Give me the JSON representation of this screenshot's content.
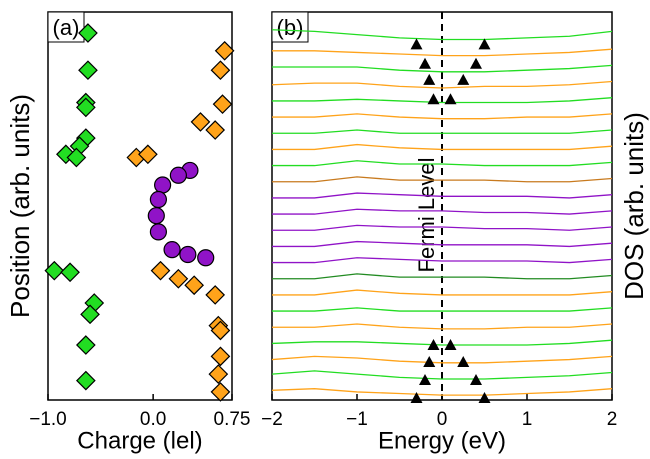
{
  "chart_data": [
    {
      "type": "scatter",
      "panel_label": "(a)",
      "x_label": "Charge (lel)",
      "y_label": "Position (arb. units)",
      "xlim": [
        -1,
        0.75
      ],
      "ylim": [
        0,
        24
      ],
      "xticks": [
        {
          "value": -1,
          "label": "−1.0"
        },
        {
          "value": 0,
          "label": "0.0"
        },
        0.75
      ],
      "series": [
        {
          "color": "#22dd22",
          "marker": "diamond",
          "x": [
            -0.62,
            -0.62,
            -0.64,
            -0.64,
            -0.64,
            -0.7,
            -0.83,
            -0.73,
            -0.94,
            -0.79,
            -0.56,
            -0.6,
            -0.64,
            -0.64
          ],
          "y": [
            22.7,
            20.4,
            18.4,
            18.1,
            16.2,
            15.7,
            15.2,
            15.0,
            8.0,
            7.9,
            6.0,
            5.3,
            3.4,
            1.2
          ]
        },
        {
          "color": "#ffa31a",
          "marker": "diamond",
          "x": [
            0.68,
            0.64,
            0.66,
            0.45,
            0.59,
            -0.16,
            -0.05,
            0.07,
            0.24,
            0.39,
            0.59,
            0.62,
            0.64,
            0.64,
            0.62,
            0.64
          ],
          "y": [
            21.6,
            20.4,
            18.3,
            17.2,
            16.7,
            15.0,
            15.2,
            8.0,
            7.5,
            7.1,
            6.5,
            4.6,
            4.3,
            2.7,
            1.6,
            0.5
          ]
        },
        {
          "color": "#9013c7",
          "marker": "circle",
          "x": [
            0.35,
            0.24,
            0.09,
            0.05,
            0.03,
            0.05,
            0.18,
            0.33,
            0.5
          ],
          "y": [
            14.2,
            13.9,
            13.3,
            12.4,
            11.4,
            10.4,
            9.3,
            9.0,
            8.8
          ]
        }
      ]
    },
    {
      "type": "line",
      "panel_label": "(b)",
      "x_label": "Energy (eV)",
      "y_label": "DOS (arb. units)",
      "annotation": "Fermi Level",
      "xlim": [
        -2,
        2
      ],
      "ylim": [
        0,
        24
      ],
      "xticks": [
        {
          "value": -2,
          "label": "−2"
        },
        {
          "value": -1,
          "label": "−1"
        },
        0,
        1,
        2
      ],
      "x": [
        -2,
        -1.5,
        -1,
        -0.5,
        0,
        0.5,
        1,
        1.5,
        2
      ],
      "series": [
        {
          "color": "#22dd22",
          "values": [
            0.9,
            0.8,
            0.6,
            0.4,
            0.3,
            0.3,
            0.4,
            0.5,
            0.8
          ]
        },
        {
          "color": "#ffa31a",
          "values": [
            0.6,
            0.6,
            0.5,
            0.4,
            0.3,
            0.3,
            0.4,
            0.5,
            0.7
          ]
        },
        {
          "color": "#22dd22",
          "values": [
            0.6,
            0.6,
            0.6,
            0.4,
            0.3,
            0.3,
            0.4,
            0.5,
            0.7
          ]
        },
        {
          "color": "#ffa31a",
          "values": [
            0.5,
            0.6,
            0.6,
            0.4,
            0.3,
            0.4,
            0.4,
            0.5,
            0.7
          ]
        },
        {
          "color": "#22dd22",
          "values": [
            0.5,
            0.5,
            0.6,
            0.5,
            0.4,
            0.4,
            0.4,
            0.5,
            0.7
          ]
        },
        {
          "color": "#ffa31a",
          "values": [
            0.5,
            0.5,
            0.7,
            0.5,
            0.4,
            0.4,
            0.5,
            0.5,
            0.7
          ]
        },
        {
          "color": "#22dd22",
          "values": [
            0.5,
            0.5,
            0.7,
            0.5,
            0.5,
            0.5,
            0.5,
            0.5,
            0.7
          ]
        },
        {
          "color": "#ffa31a",
          "values": [
            0.5,
            0.5,
            0.8,
            0.6,
            0.5,
            0.5,
            0.5,
            0.5,
            0.7
          ]
        },
        {
          "color": "#22dd22",
          "values": [
            0.5,
            0.5,
            0.8,
            0.6,
            0.6,
            0.5,
            0.5,
            0.5,
            0.7
          ]
        },
        {
          "color": "#c87a1e",
          "values": [
            0.5,
            0.5,
            0.8,
            0.6,
            0.6,
            0.6,
            0.5,
            0.5,
            0.7
          ]
        },
        {
          "color": "#9013c7",
          "values": [
            0.5,
            0.5,
            0.8,
            0.7,
            0.6,
            0.6,
            0.6,
            0.5,
            0.7
          ]
        },
        {
          "color": "#9013c7",
          "values": [
            0.5,
            0.5,
            0.8,
            0.7,
            0.7,
            0.6,
            0.6,
            0.5,
            0.7
          ]
        },
        {
          "color": "#9013c7",
          "values": [
            0.5,
            0.5,
            0.8,
            0.7,
            0.7,
            0.6,
            0.6,
            0.5,
            0.7
          ]
        },
        {
          "color": "#9013c7",
          "values": [
            0.5,
            0.5,
            0.8,
            0.7,
            0.6,
            0.6,
            0.6,
            0.5,
            0.7
          ]
        },
        {
          "color": "#9013c7",
          "values": [
            0.5,
            0.5,
            0.8,
            0.7,
            0.6,
            0.6,
            0.6,
            0.5,
            0.7
          ]
        },
        {
          "color": "#228b22",
          "values": [
            0.5,
            0.5,
            0.8,
            0.6,
            0.6,
            0.6,
            0.5,
            0.5,
            0.7
          ]
        },
        {
          "color": "#ffa31a",
          "values": [
            0.5,
            0.5,
            0.8,
            0.6,
            0.5,
            0.5,
            0.5,
            0.5,
            0.7
          ]
        },
        {
          "color": "#22dd22",
          "values": [
            0.5,
            0.5,
            0.7,
            0.5,
            0.5,
            0.5,
            0.5,
            0.5,
            0.7
          ]
        },
        {
          "color": "#ffa31a",
          "values": [
            0.5,
            0.5,
            0.7,
            0.5,
            0.4,
            0.4,
            0.5,
            0.5,
            0.7
          ]
        },
        {
          "color": "#22dd22",
          "values": [
            0.5,
            0.6,
            0.6,
            0.5,
            0.4,
            0.4,
            0.4,
            0.5,
            0.7
          ]
        },
        {
          "color": "#ffa31a",
          "values": [
            0.5,
            0.7,
            0.6,
            0.4,
            0.3,
            0.3,
            0.4,
            0.5,
            0.7
          ]
        },
        {
          "color": "#22dd22",
          "values": [
            0.6,
            0.8,
            0.6,
            0.4,
            0.3,
            0.3,
            0.4,
            0.5,
            0.7
          ]
        },
        {
          "color": "#ffa31a",
          "values": [
            0.6,
            0.7,
            0.5,
            0.4,
            0.3,
            0.3,
            0.4,
            0.5,
            0.7
          ]
        }
      ],
      "markers": {
        "x": [
          -0.3,
          0.5,
          -0.2,
          0.4,
          -0.15,
          0.25,
          -0.1,
          0.1,
          -0.1,
          0.1,
          -0.15,
          0.25,
          -0.2,
          0.4,
          -0.3,
          0.5
        ],
        "y": [
          22.0,
          22.0,
          20.8,
          20.8,
          19.8,
          19.8,
          18.6,
          18.6,
          3.4,
          3.4,
          2.35,
          2.35,
          1.24,
          1.24,
          0.12,
          0.12
        ]
      }
    }
  ]
}
